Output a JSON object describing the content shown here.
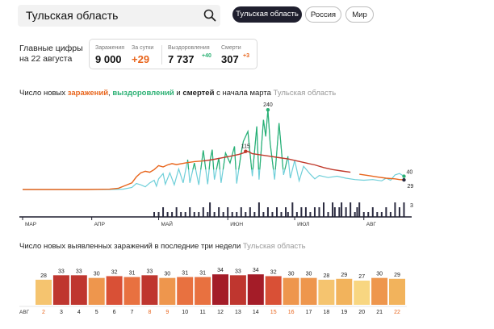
{
  "search": {
    "value": "Тульская область"
  },
  "region_tabs": [
    {
      "label": "Тульская область",
      "active": true
    },
    {
      "label": "Россия",
      "active": false
    },
    {
      "label": "Мир",
      "active": false
    }
  ],
  "headline": {
    "line1": "Главные цифры",
    "line2": "на 22 августа"
  },
  "stats": [
    {
      "label": "Заражения",
      "value": "9 000",
      "delta": "",
      "color": "#111111"
    },
    {
      "label": "За сутки",
      "value": "+29",
      "delta": "",
      "color": "#e8651c"
    },
    {
      "label": "Выздоровления",
      "value": "7 737",
      "delta": "+40",
      "color": "#111111"
    },
    {
      "label": "Смерти",
      "value": "307",
      "delta": "+3",
      "color": "#111111"
    }
  ],
  "colors": {
    "infections": "#e8651c",
    "recoveries_line": "#6fcfd9",
    "recoveries_peaks": "#2ab073",
    "deaths": "#2b2b40",
    "trend": "#c0392b",
    "accent_dark": "#1f1f2e"
  },
  "chart_data": [
    {
      "type": "line",
      "title_parts": {
        "prefix": "Число новых ",
        "infections": "заражений",
        "comma": ", ",
        "recoveries": "выздоровлений",
        "and": " и ",
        "deaths": "смертей",
        "suffix": " с начала марта",
        "region": "Тульская область"
      },
      "x_ticks": [
        "МАР",
        "АПР",
        "МАЙ",
        "ИЮН",
        "ИЮЛ",
        "АВГ"
      ],
      "x_range_days": [
        1,
        174
      ],
      "series": [
        {
          "name": "заражений",
          "key": "infections",
          "points": [
            [
              1,
              0
            ],
            [
              30,
              0
            ],
            [
              40,
              1
            ],
            [
              44,
              4
            ],
            [
              47,
              12
            ],
            [
              50,
              20
            ],
            [
              52,
              38
            ],
            [
              54,
              50
            ],
            [
              56,
              55
            ],
            [
              58,
              52
            ],
            [
              60,
              60
            ],
            [
              62,
              72
            ],
            [
              64,
              68
            ],
            [
              66,
              74
            ],
            [
              68,
              78
            ],
            [
              70,
              75
            ],
            [
              74,
              80
            ],
            [
              78,
              84
            ],
            [
              82,
              86
            ],
            [
              86,
              90
            ],
            [
              90,
              95
            ],
            [
              94,
              100
            ],
            [
              98,
              106
            ],
            [
              100,
              110
            ],
            [
              102,
              115
            ],
            [
              104,
              108
            ],
            [
              108,
              104
            ],
            [
              112,
              100
            ],
            [
              116,
              96
            ],
            [
              120,
              92
            ],
            [
              124,
              86
            ],
            [
              128,
              80
            ],
            [
              132,
              74
            ],
            [
              136,
              66
            ],
            [
              140,
              60
            ],
            [
              144,
              56
            ],
            [
              148,
              52
            ],
            [
              152,
              46
            ],
            [
              156,
              42
            ],
            [
              160,
              38
            ],
            [
              164,
              34
            ],
            [
              168,
              32
            ],
            [
              170,
              30
            ],
            [
              172,
              29
            ]
          ],
          "end_label": ""
        },
        {
          "name": "выздоровлений",
          "key": "recoveries",
          "points": [
            [
              1,
              0
            ],
            [
              40,
              0
            ],
            [
              46,
              1
            ],
            [
              50,
              6
            ],
            [
              52,
              18
            ],
            [
              54,
              14
            ],
            [
              56,
              8
            ],
            [
              58,
              20
            ],
            [
              60,
              28
            ],
            [
              61,
              10
            ],
            [
              62,
              32
            ],
            [
              64,
              48
            ],
            [
              65,
              16
            ],
            [
              67,
              50
            ],
            [
              69,
              14
            ],
            [
              71,
              62
            ],
            [
              73,
              20
            ],
            [
              75,
              90
            ],
            [
              76,
              20
            ],
            [
              78,
              80
            ],
            [
              80,
              14
            ],
            [
              82,
              118
            ],
            [
              84,
              16
            ],
            [
              85,
              85
            ],
            [
              86,
              120
            ],
            [
              87,
              30
            ],
            [
              89,
              95
            ],
            [
              90,
              20
            ],
            [
              92,
              110
            ],
            [
              94,
              80
            ],
            [
              96,
              130
            ],
            [
              97,
              18
            ],
            [
              99,
              110
            ],
            [
              100,
              145
            ],
            [
              102,
              175
            ],
            [
              104,
              40
            ],
            [
              106,
              190
            ],
            [
              107,
              30
            ],
            [
              109,
              210
            ],
            [
              110,
              160
            ],
            [
              111,
              240
            ],
            [
              112,
              140
            ],
            [
              114,
              30
            ],
            [
              116,
              200
            ],
            [
              118,
              44
            ],
            [
              120,
              100
            ],
            [
              121,
              34
            ],
            [
              123,
              88
            ],
            [
              125,
              26
            ],
            [
              127,
              70
            ],
            [
              130,
              46
            ],
            [
              132,
              32
            ],
            [
              134,
              42
            ],
            [
              138,
              36
            ],
            [
              142,
              40
            ],
            [
              146,
              34
            ],
            [
              150,
              30
            ],
            [
              154,
              28
            ],
            [
              158,
              30
            ],
            [
              162,
              26
            ],
            [
              164,
              34
            ],
            [
              166,
              28
            ],
            [
              168,
              44
            ],
            [
              170,
              48
            ],
            [
              172,
              40
            ]
          ],
          "end_label": "40"
        },
        {
          "name": "смертей",
          "key": "deaths",
          "bars": [
            [
              60,
              1
            ],
            [
              62,
              1
            ],
            [
              64,
              2
            ],
            [
              66,
              1
            ],
            [
              68,
              1
            ],
            [
              70,
              2
            ],
            [
              72,
              1
            ],
            [
              74,
              1
            ],
            [
              76,
              2
            ],
            [
              78,
              1
            ],
            [
              80,
              1
            ],
            [
              82,
              2
            ],
            [
              84,
              1
            ],
            [
              85,
              3
            ],
            [
              87,
              1
            ],
            [
              89,
              2
            ],
            [
              91,
              1
            ],
            [
              93,
              2
            ],
            [
              95,
              1
            ],
            [
              97,
              1
            ],
            [
              99,
              2
            ],
            [
              101,
              1
            ],
            [
              103,
              2
            ],
            [
              105,
              1
            ],
            [
              107,
              3
            ],
            [
              109,
              1
            ],
            [
              111,
              2
            ],
            [
              113,
              1
            ],
            [
              115,
              2
            ],
            [
              117,
              1
            ],
            [
              119,
              2
            ],
            [
              120,
              1
            ],
            [
              122,
              3
            ],
            [
              124,
              1
            ],
            [
              126,
              2
            ],
            [
              128,
              2
            ],
            [
              130,
              1
            ],
            [
              132,
              2
            ],
            [
              134,
              2
            ],
            [
              136,
              3
            ],
            [
              138,
              1
            ],
            [
              140,
              3
            ],
            [
              141,
              2
            ],
            [
              143,
              2
            ],
            [
              144,
              3
            ],
            [
              146,
              2
            ],
            [
              148,
              3
            ],
            [
              150,
              1
            ],
            [
              151,
              2
            ],
            [
              152,
              3
            ],
            [
              154,
              1
            ],
            [
              156,
              1
            ],
            [
              158,
              2
            ],
            [
              160,
              1
            ],
            [
              162,
              1
            ],
            [
              164,
              2
            ],
            [
              166,
              1
            ],
            [
              168,
              3
            ],
            [
              170,
              2
            ],
            [
              172,
              3
            ]
          ],
          "end_label": "3"
        }
      ],
      "annotations": [
        {
          "x": 101,
          "y": 115,
          "label": "115"
        },
        {
          "x": 111,
          "y": 240,
          "label": "240"
        },
        {
          "x": 172,
          "y": 29,
          "label": "29"
        }
      ],
      "ylim": [
        0,
        260
      ],
      "deaths_ylim": [
        0,
        3
      ]
    },
    {
      "type": "bar",
      "title": "Число новых выявленных заражений в последние три недели",
      "region": "Тульская область",
      "x_prefix": "АВГ",
      "categories": [
        "2",
        "3",
        "4",
        "5",
        "6",
        "7",
        "8",
        "9",
        "10",
        "11",
        "12",
        "13",
        "14",
        "15",
        "16",
        "17",
        "18",
        "19",
        "20",
        "21",
        "22"
      ],
      "values": [
        28,
        33,
        33,
        30,
        32,
        31,
        33,
        30,
        31,
        31,
        34,
        33,
        34,
        32,
        30,
        30,
        28,
        29,
        27,
        30,
        29
      ],
      "weekend_flags": [
        true,
        false,
        false,
        false,
        false,
        false,
        true,
        true,
        false,
        false,
        false,
        false,
        false,
        true,
        true,
        false,
        false,
        false,
        false,
        false,
        true
      ],
      "ylim": [
        0,
        36
      ]
    }
  ]
}
